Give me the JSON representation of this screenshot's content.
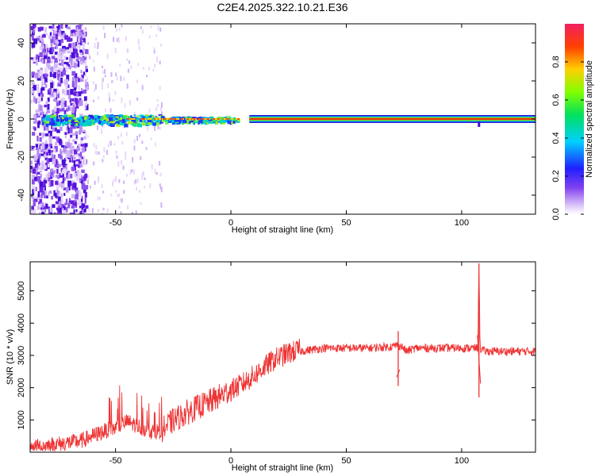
{
  "title": "C2E4.2025.322.10.21.E36",
  "chart_data": [
    {
      "type": "heatmap",
      "xlabel": "Height of straight line (km)",
      "ylabel": "Frequency (Hz)",
      "xlim": [
        -87,
        132
      ],
      "ylim": [
        -50,
        50
      ],
      "xticks": [
        -50,
        0,
        50,
        100
      ],
      "yticks": [
        -40,
        -20,
        0,
        20,
        40
      ],
      "colorbar": {
        "label": "Normalized spectral amplitude",
        "range": [
          0,
          1
        ],
        "ticks": [
          0.0,
          0.2,
          0.4,
          0.6,
          0.8
        ],
        "tick_labels": [
          "0.0",
          "0.2",
          "0.4",
          "0.6",
          "0.8"
        ]
      },
      "band": {
        "center_hz": 0,
        "segments": [
          {
            "x_start": -87,
            "x_end": -64,
            "description": "broadband noise",
            "amplitude": 0.15
          },
          {
            "x_start": -64,
            "x_end": -30,
            "description": "noisy band",
            "amplitude": 0.35
          },
          {
            "x_start": -30,
            "x_end": 3,
            "description": "mixed band",
            "amplitude": 0.55
          },
          {
            "x_start": 8,
            "x_end": 132,
            "description": "steady carrier",
            "amplitude": 0.95
          }
        ]
      }
    },
    {
      "type": "line",
      "xlabel": "Height of straight line (km)",
      "ylabel": "SNR (10 * v/v)",
      "xlim": [
        -87,
        132
      ],
      "ylim": [
        0,
        5900
      ],
      "xticks": [
        -50,
        0,
        50,
        100
      ],
      "yticks": [
        1000,
        2000,
        3000,
        4000,
        5000
      ],
      "series": [
        {
          "name": "SNR",
          "color": "#ee3333",
          "x": [
            -87,
            -80,
            -75,
            -70,
            -65,
            -60,
            -55,
            -50,
            -45,
            -40,
            -35,
            -30,
            -25,
            -20,
            -15,
            -10,
            -5,
            0,
            5,
            10,
            15,
            20,
            25,
            30,
            35,
            40,
            50,
            60,
            70,
            72,
            74,
            76,
            80,
            90,
            100,
            105,
            107,
            107.5,
            108,
            110,
            120,
            132
          ],
          "values": [
            100,
            150,
            200,
            250,
            300,
            450,
            600,
            700,
            900,
            750,
            600,
            600,
            900,
            1100,
            1300,
            1450,
            1650,
            1850,
            2050,
            2300,
            2600,
            2850,
            3000,
            3100,
            3150,
            3200,
            3200,
            3200,
            3250,
            3300,
            3250,
            3100,
            3200,
            3200,
            3200,
            3200,
            3200,
            5850,
            3200,
            3100,
            3100,
            3100
          ]
        }
      ],
      "spikes": [
        {
          "x": 72.5,
          "low": 2050,
          "high": 3750
        },
        {
          "x": 107.5,
          "low": 1700,
          "high": 5850
        }
      ]
    }
  ],
  "colors": {
    "signal": "#ee3333",
    "band_core": "#dd1111"
  }
}
